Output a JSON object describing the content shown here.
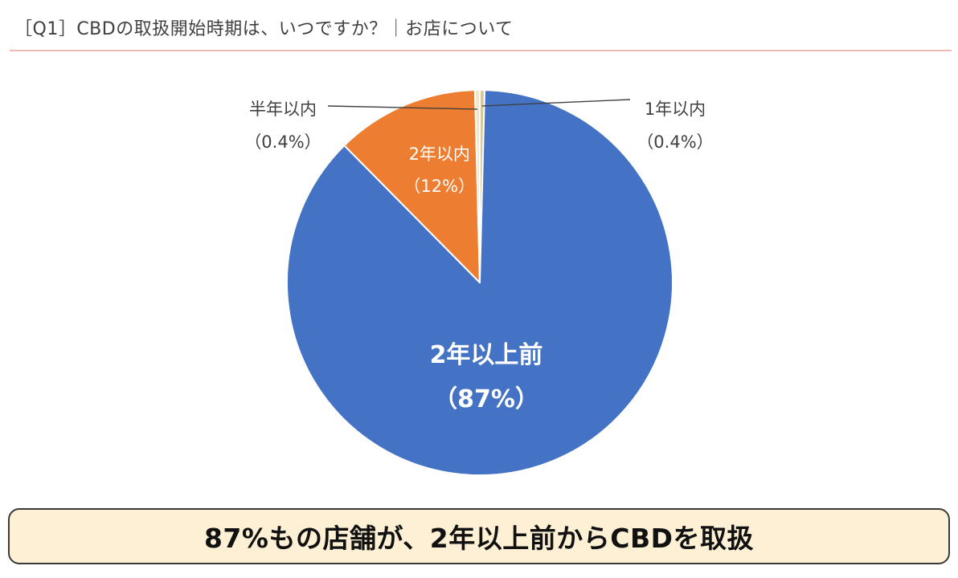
{
  "chart_data": {
    "type": "pie",
    "title": "［Q1］CBDの取扱開始時期は、いつですか？｜お店について",
    "slices": [
      {
        "label": "1年以内",
        "value_label": "（0.4%）",
        "value": 0.4,
        "color": "#d9c79a"
      },
      {
        "label": "2年以上前",
        "value_label": "（87%）",
        "value": 87.2,
        "color": "#4472c4"
      },
      {
        "label": "2年以内",
        "value_label": "（12%）",
        "value": 12.0,
        "color": "#ed7d31"
      },
      {
        "label": "半年以内",
        "value_label": "（0.4%）",
        "value": 0.4,
        "color": "#f2e6c4"
      }
    ],
    "start_angle_deg": 0,
    "direction": "clockwise"
  },
  "callout": {
    "text": "87%もの店舗が、2年以上前からCBDを取扱"
  }
}
